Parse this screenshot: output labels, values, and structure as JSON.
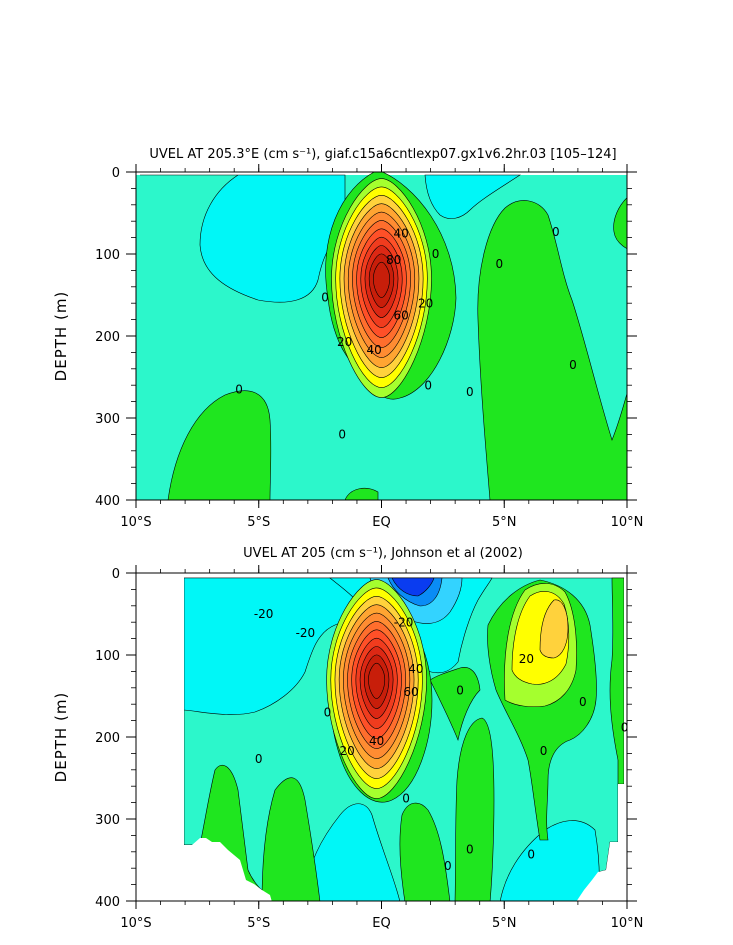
{
  "chart_data": [
    {
      "type": "contour",
      "title": "UVEL AT 205.3°E (cm s⁻¹), giaf.c15a6cntlexp07.gx1v6.2hr.03 [105–124]",
      "xlabel": "",
      "ylabel": "DEPTH (m)",
      "xlim": [
        -10,
        10
      ],
      "ylim": [
        400,
        0
      ],
      "xticks": [
        {
          "value": -10,
          "label": "10°S"
        },
        {
          "value": -5,
          "label": "5°S"
        },
        {
          "value": 0,
          "label": "EQ"
        },
        {
          "value": 5,
          "label": "5°N"
        },
        {
          "value": 10,
          "label": "10°N"
        }
      ],
      "yticks": [
        {
          "value": 0,
          "label": "0"
        },
        {
          "value": 100,
          "label": "100"
        },
        {
          "value": 200,
          "label": "200"
        },
        {
          "value": 300,
          "label": "300"
        },
        {
          "value": 400,
          "label": "400"
        }
      ],
      "contour_interval": 10,
      "core": {
        "lat": 0.0,
        "depth": 130,
        "max_value": 110
      },
      "contour_labels": [
        {
          "text": "40",
          "lat": 0.8,
          "depth": 80
        },
        {
          "text": "80",
          "lat": 0.5,
          "depth": 112
        },
        {
          "text": "60",
          "lat": 0.8,
          "depth": 180
        },
        {
          "text": "20",
          "lat": 1.8,
          "depth": 165
        },
        {
          "text": "20",
          "lat": -1.5,
          "depth": 212
        },
        {
          "text": "40",
          "lat": -0.3,
          "depth": 222
        },
        {
          "text": "0",
          "lat": -2.3,
          "depth": 158
        },
        {
          "text": "0",
          "lat": 2.2,
          "depth": 105
        },
        {
          "text": "0",
          "lat": 4.8,
          "depth": 117
        },
        {
          "text": "0",
          "lat": 7.1,
          "depth": 78
        },
        {
          "text": "0",
          "lat": 7.8,
          "depth": 240
        },
        {
          "text": "0",
          "lat": -5.8,
          "depth": 270
        },
        {
          "text": "0",
          "lat": 1.9,
          "depth": 265
        },
        {
          "text": "0",
          "lat": 3.6,
          "depth": 273
        },
        {
          "text": "0",
          "lat": -1.6,
          "depth": 325
        }
      ]
    },
    {
      "type": "contour",
      "title": "UVEL AT 205 (cm s⁻¹), Johnson et al (2002)",
      "xlabel": "",
      "ylabel": "DEPTH (m)",
      "xlim": [
        -10,
        10
      ],
      "ylim": [
        400,
        0
      ],
      "xticks": [
        {
          "value": -10,
          "label": "10°S"
        },
        {
          "value": -5,
          "label": "5°S"
        },
        {
          "value": 0,
          "label": "EQ"
        },
        {
          "value": 5,
          "label": "5°N"
        },
        {
          "value": 10,
          "label": "10°N"
        }
      ],
      "yticks": [
        {
          "value": 0,
          "label": "0"
        },
        {
          "value": 100,
          "label": "100"
        },
        {
          "value": 200,
          "label": "200"
        },
        {
          "value": 300,
          "label": "300"
        },
        {
          "value": 400,
          "label": "400"
        }
      ],
      "contour_interval": 10,
      "data_coverage_lat": [
        -8,
        9.8
      ],
      "core": {
        "lat": -0.2,
        "depth": 130,
        "max_value": 110
      },
      "contour_labels": [
        {
          "text": "-20",
          "lat": -4.8,
          "depth": 55
        },
        {
          "text": "-20",
          "lat": -3.1,
          "depth": 78
        },
        {
          "text": "-20",
          "lat": 0.9,
          "depth": 65
        },
        {
          "text": "60",
          "lat": 1.2,
          "depth": 150
        },
        {
          "text": "40",
          "lat": 1.4,
          "depth": 122
        },
        {
          "text": "20",
          "lat": -1.4,
          "depth": 222
        },
        {
          "text": "40",
          "lat": -0.2,
          "depth": 210
        },
        {
          "text": "20",
          "lat": 5.9,
          "depth": 110
        },
        {
          "text": "0",
          "lat": -2.2,
          "depth": 175
        },
        {
          "text": "0",
          "lat": -5.0,
          "depth": 232
        },
        {
          "text": "0",
          "lat": 3.2,
          "depth": 148
        },
        {
          "text": "0",
          "lat": 1.0,
          "depth": 280
        },
        {
          "text": "0",
          "lat": 8.2,
          "depth": 162
        },
        {
          "text": "0",
          "lat": 6.6,
          "depth": 222
        },
        {
          "text": "0",
          "lat": 9.9,
          "depth": 193
        },
        {
          "text": "0",
          "lat": 6.1,
          "depth": 348
        },
        {
          "text": "0",
          "lat": 2.7,
          "depth": 362
        },
        {
          "text": "0",
          "lat": 3.6,
          "depth": 342
        }
      ]
    }
  ]
}
